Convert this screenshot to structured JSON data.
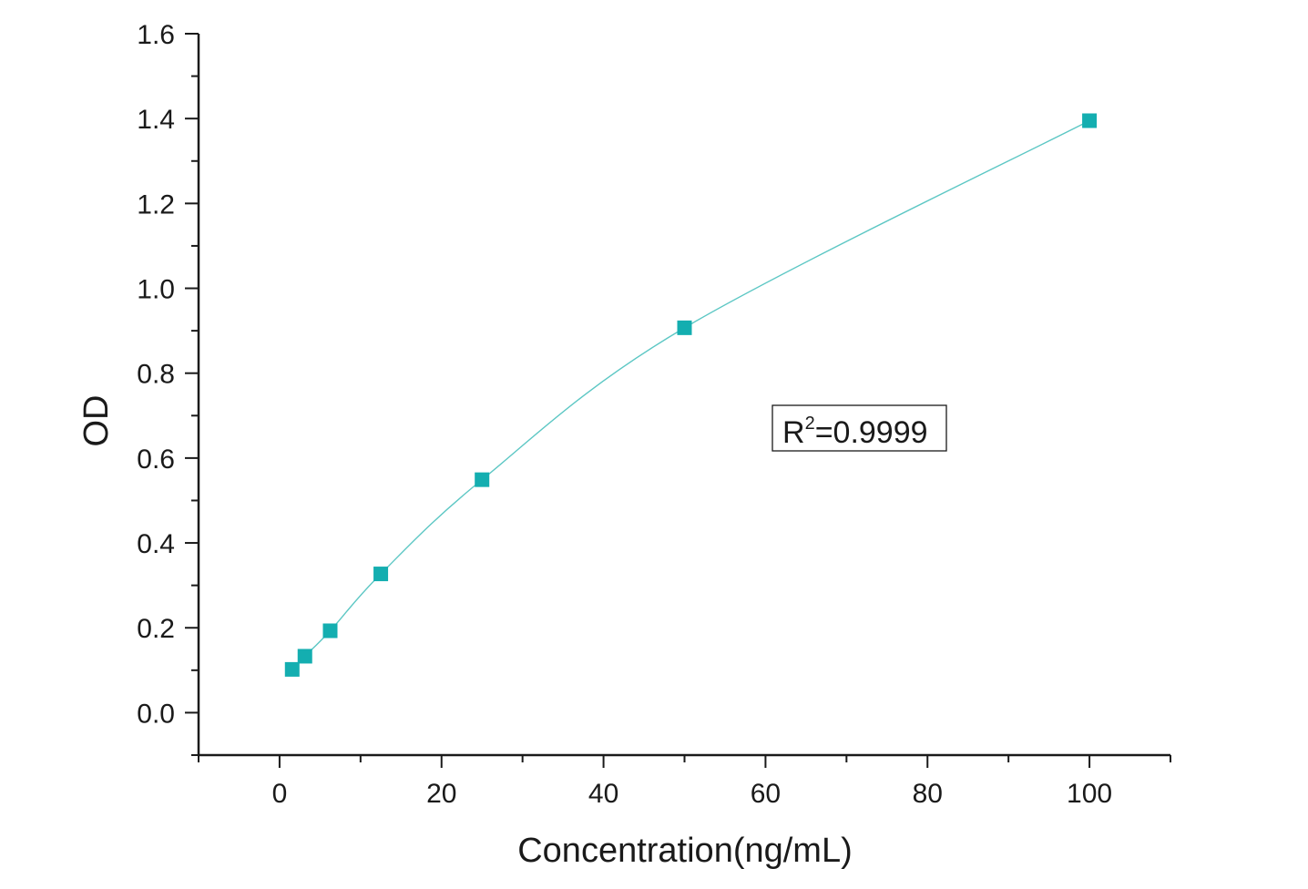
{
  "chart_data": {
    "type": "scatter",
    "title": "",
    "xlabel": "Concentration(ng/mL)",
    "ylabel": "OD",
    "xlim": [
      -10,
      110
    ],
    "ylim": [
      -0.1,
      1.6
    ],
    "xticks": [
      0,
      20,
      40,
      60,
      80,
      100
    ],
    "xtick_labels": [
      "0",
      "20",
      "40",
      "60",
      "80",
      "100"
    ],
    "yticks": [
      0.0,
      0.2,
      0.4,
      0.6,
      0.8,
      1.0,
      1.2,
      1.4,
      1.6
    ],
    "ytick_labels": [
      "0.0",
      "0.2",
      "0.4",
      "0.6",
      "0.8",
      "1.0",
      "1.2",
      "1.4",
      "1.6"
    ],
    "grid": false,
    "series": [
      {
        "x": [
          1.56,
          3.13,
          6.25,
          12.5,
          25,
          50,
          100
        ],
        "y": [
          0.102,
          0.133,
          0.193,
          0.327,
          0.549,
          0.907,
          1.395
        ],
        "marker": "square",
        "color": "#14aeb0",
        "fit_curve": true
      }
    ],
    "annotation": {
      "prefix": "R",
      "superscript": "2",
      "suffix": "=0.9999",
      "full_text": "R2=0.9999"
    }
  },
  "colors": {
    "marker": "#14aeb0",
    "curve": "#5cc7c4",
    "axis": "#1a1a1a"
  }
}
